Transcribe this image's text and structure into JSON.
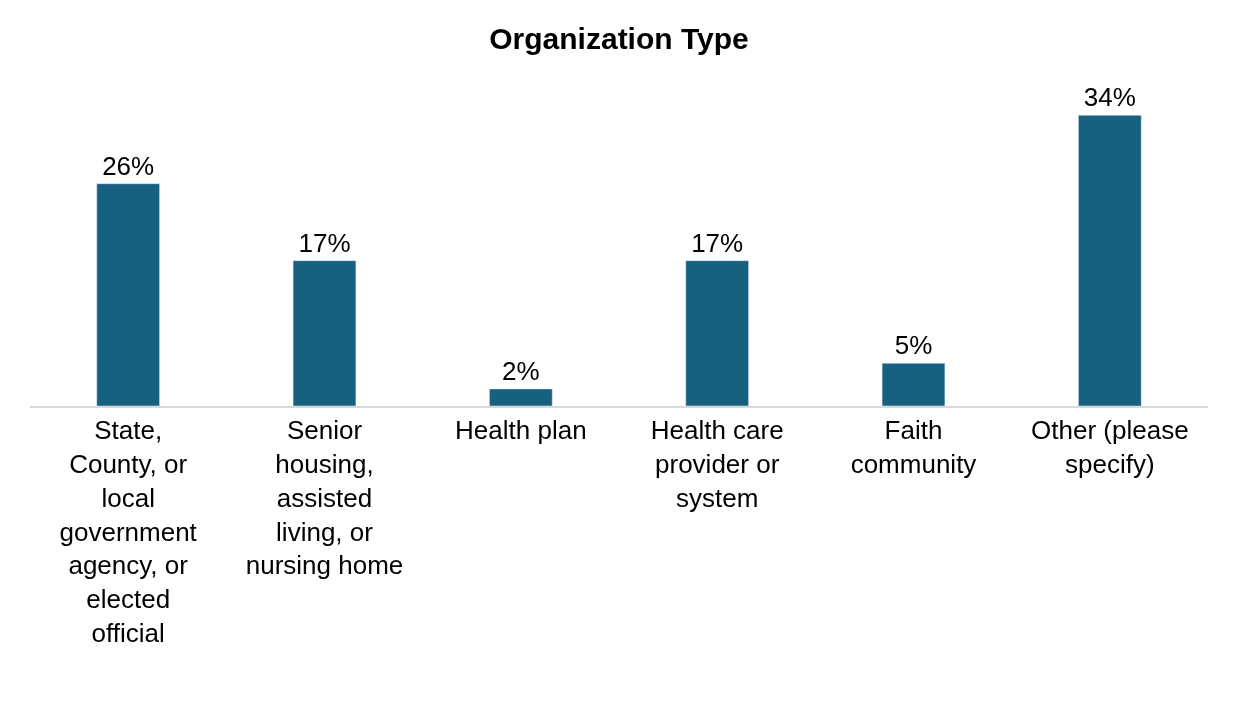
{
  "chart_data": {
    "type": "bar",
    "title": "Organization Type",
    "categories": [
      "State, County, or local government agency, or elected official",
      "Senior housing, assisted living, or nursing home",
      "Health plan",
      "Health care provider or system",
      "Faith community",
      "Other (please specify)"
    ],
    "values": [
      26,
      17,
      2,
      17,
      5,
      34
    ],
    "value_labels": [
      "26%",
      "17%",
      "2%",
      "17%",
      "5%",
      "34%"
    ],
    "color": "#17607f",
    "legend": false
  }
}
